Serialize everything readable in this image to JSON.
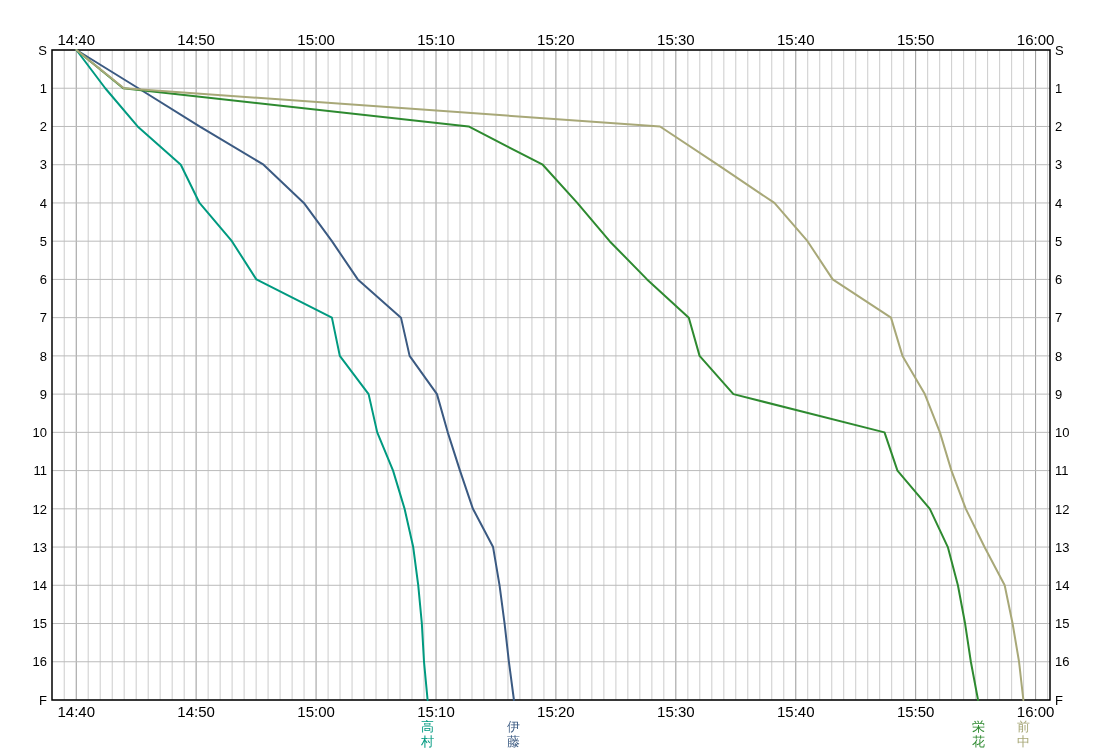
{
  "chart_data": {
    "type": "line",
    "grid": true,
    "xlim": [
      14.633,
      16.02
    ],
    "x2lim": [
      14.633,
      16.02
    ],
    "xticks": [
      {
        "value": 14.65,
        "label": null
      },
      {
        "value": 14.6667,
        "label": "14:40"
      },
      {
        "value": 14.6833,
        "label": null
      },
      {
        "value": 14.7,
        "label": null
      },
      {
        "value": 14.7167,
        "label": null
      },
      {
        "value": 14.7333,
        "label": null
      },
      {
        "value": 14.75,
        "label": null
      },
      {
        "value": 14.7667,
        "label": null
      },
      {
        "value": 14.7833,
        "label": null
      },
      {
        "value": 14.8,
        "label": null
      },
      {
        "value": 14.8167,
        "label": null
      },
      {
        "value": 14.8333,
        "label": "14:50"
      },
      {
        "value": 14.85,
        "label": null
      },
      {
        "value": 14.8667,
        "label": null
      },
      {
        "value": 14.8833,
        "label": null
      },
      {
        "value": 14.9,
        "label": null
      },
      {
        "value": 14.9167,
        "label": null
      },
      {
        "value": 14.9333,
        "label": null
      },
      {
        "value": 14.95,
        "label": null
      },
      {
        "value": 14.9667,
        "label": null
      },
      {
        "value": 14.9833,
        "label": null
      },
      {
        "value": 15,
        "label": "15:00"
      },
      {
        "value": 15.0167,
        "label": null
      },
      {
        "value": 15.0333,
        "label": null
      },
      {
        "value": 15.05,
        "label": null
      },
      {
        "value": 15.0667,
        "label": null
      },
      {
        "value": 15.0833,
        "label": null
      },
      {
        "value": 15.1,
        "label": null
      },
      {
        "value": 15.1167,
        "label": null
      },
      {
        "value": 15.1333,
        "label": null
      },
      {
        "value": 15.15,
        "label": null
      },
      {
        "value": 15.1667,
        "label": "15:10"
      },
      {
        "value": 15.1833,
        "label": null
      },
      {
        "value": 15.2,
        "label": null
      },
      {
        "value": 15.2167,
        "label": null
      },
      {
        "value": 15.2333,
        "label": null
      },
      {
        "value": 15.25,
        "label": null
      },
      {
        "value": 15.2667,
        "label": null
      },
      {
        "value": 15.2833,
        "label": null
      },
      {
        "value": 15.3,
        "label": null
      },
      {
        "value": 15.3167,
        "label": null
      },
      {
        "value": 15.3333,
        "label": "15:20"
      },
      {
        "value": 15.35,
        "label": null
      },
      {
        "value": 15.3667,
        "label": null
      },
      {
        "value": 15.3833,
        "label": null
      },
      {
        "value": 15.4,
        "label": null
      },
      {
        "value": 15.4167,
        "label": null
      },
      {
        "value": 15.4333,
        "label": null
      },
      {
        "value": 15.45,
        "label": null
      },
      {
        "value": 15.4667,
        "label": null
      },
      {
        "value": 15.4833,
        "label": null
      },
      {
        "value": 15.5,
        "label": "15:30"
      },
      {
        "value": 15.5167,
        "label": null
      },
      {
        "value": 15.5333,
        "label": null
      },
      {
        "value": 15.55,
        "label": null
      },
      {
        "value": 15.5667,
        "label": null
      },
      {
        "value": 15.5833,
        "label": null
      },
      {
        "value": 15.6,
        "label": null
      },
      {
        "value": 15.6167,
        "label": null
      },
      {
        "value": 15.6333,
        "label": null
      },
      {
        "value": 15.65,
        "label": null
      },
      {
        "value": 15.6667,
        "label": "15:40"
      },
      {
        "value": 15.6833,
        "label": null
      },
      {
        "value": 15.7,
        "label": null
      },
      {
        "value": 15.7167,
        "label": null
      },
      {
        "value": 15.7333,
        "label": null
      },
      {
        "value": 15.75,
        "label": null
      },
      {
        "value": 15.7667,
        "label": null
      },
      {
        "value": 15.7833,
        "label": null
      },
      {
        "value": 15.8,
        "label": null
      },
      {
        "value": 15.8167,
        "label": null
      },
      {
        "value": 15.8333,
        "label": "15:50"
      },
      {
        "value": 15.85,
        "label": null
      },
      {
        "value": 15.8667,
        "label": null
      },
      {
        "value": 15.8833,
        "label": null
      },
      {
        "value": 15.9,
        "label": null
      },
      {
        "value": 15.9167,
        "label": null
      },
      {
        "value": 15.9333,
        "label": null
      },
      {
        "value": 15.95,
        "label": null
      },
      {
        "value": 15.9667,
        "label": null
      },
      {
        "value": 15.9833,
        "label": null
      },
      {
        "value": 16,
        "label": "16:00"
      },
      {
        "value": 16.0167,
        "label": null
      }
    ],
    "x2ticks": [
      {
        "value": 14.6667,
        "label": "14:40"
      },
      {
        "value": 14.8333,
        "label": "14:50"
      },
      {
        "value": 15,
        "label": "15:00"
      },
      {
        "value": 15.1667,
        "label": "15:10"
      },
      {
        "value": 15.3333,
        "label": "15:20"
      },
      {
        "value": 15.5,
        "label": "15:30"
      },
      {
        "value": 15.6667,
        "label": "15:40"
      },
      {
        "value": 15.8333,
        "label": "15:50"
      },
      {
        "value": 16,
        "label": "16:00"
      }
    ],
    "ylim": [
      17,
      0
    ],
    "y2lim": [
      17,
      0
    ],
    "yticks": [
      {
        "value": 0,
        "label": "S"
      },
      1,
      2,
      3,
      4,
      5,
      6,
      7,
      8,
      9,
      10,
      11,
      12,
      13,
      14,
      15,
      16,
      {
        "value": 17,
        "label": "F"
      }
    ],
    "y2ticks": [
      {
        "value": 0,
        "label": "S"
      },
      1,
      2,
      3,
      4,
      5,
      6,
      7,
      8,
      9,
      10,
      11,
      12,
      13,
      14,
      15,
      16,
      {
        "value": 17,
        "label": "F"
      }
    ],
    "series": [
      {
        "name": "高村",
        "color": "#009a80",
        "x": [
          14.667,
          14.707,
          14.752,
          14.812,
          14.838,
          14.883,
          14.917,
          15.022,
          15.033,
          15.073,
          15.085,
          15.107,
          15.123,
          15.135,
          15.142,
          15.147,
          15.15,
          15.155
        ],
        "values": [
          0,
          1,
          2,
          3,
          4,
          5,
          6,
          7,
          8,
          9,
          10,
          11,
          12,
          13,
          14,
          15,
          16,
          17
        ]
      },
      {
        "name": "伊藤",
        "color": "#3b5a82",
        "x": [
          14.667,
          14.753,
          14.838,
          14.927,
          14.983,
          15.022,
          15.058,
          15.118,
          15.13,
          15.168,
          15.183,
          15.2,
          15.218,
          15.246,
          15.255,
          15.262,
          15.268,
          15.275
        ],
        "values": [
          0,
          1,
          2,
          3,
          4,
          5,
          6,
          7,
          8,
          9,
          10,
          11,
          12,
          13,
          14,
          15,
          16,
          17
        ]
      },
      {
        "name": "栄花",
        "color": "#2e8a30",
        "x": [
          14.667,
          14.732,
          15.212,
          15.315,
          15.363,
          15.408,
          15.46,
          15.518,
          15.533,
          15.58,
          15.79,
          15.808,
          15.853,
          15.878,
          15.892,
          15.902,
          15.91,
          15.92
        ],
        "values": [
          0,
          1,
          2,
          3,
          4,
          5,
          6,
          7,
          8,
          9,
          10,
          11,
          12,
          13,
          14,
          15,
          16,
          17
        ]
      },
      {
        "name": "前中",
        "color": "#a8a878",
        "x": [
          14.667,
          14.733,
          15.478,
          15.558,
          15.637,
          15.683,
          15.718,
          15.799,
          15.815,
          15.846,
          15.867,
          15.883,
          15.903,
          15.929,
          15.957,
          15.968,
          15.977,
          15.983
        ],
        "values": [
          0,
          1,
          2,
          3,
          4,
          5,
          6,
          7,
          8,
          9,
          10,
          11,
          12,
          13,
          14,
          15,
          16,
          17
        ]
      }
    ]
  }
}
